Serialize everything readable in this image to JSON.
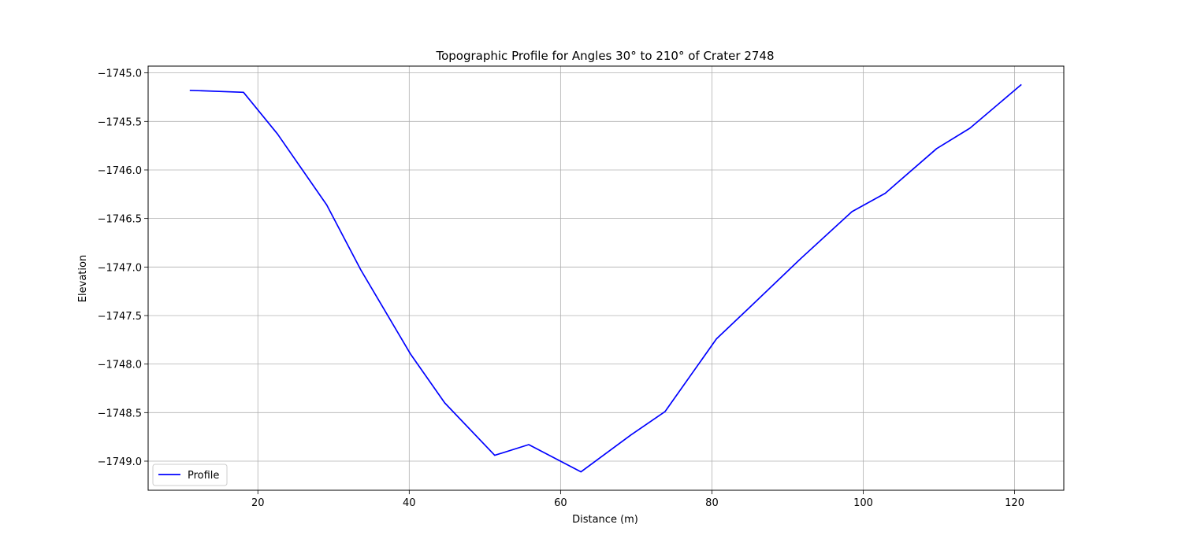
{
  "chart_data": {
    "type": "line",
    "title": "Topographic Profile for Angles 30° to 210° of Crater 2748",
    "xlabel": "Distance (m)",
    "ylabel": "Elevation",
    "xlim": [
      5.5,
      126.5
    ],
    "ylim": [
      -1749.3,
      -1744.93
    ],
    "xticks": [
      20,
      40,
      60,
      80,
      100,
      120
    ],
    "xtick_labels": [
      "20",
      "40",
      "60",
      "80",
      "100",
      "120"
    ],
    "yticks": [
      -1745.0,
      -1745.5,
      -1746.0,
      -1746.5,
      -1747.0,
      -1747.5,
      -1748.0,
      -1748.5,
      -1749.0
    ],
    "ytick_labels": [
      "−1745.0",
      "−1745.5",
      "−1746.0",
      "−1746.5",
      "−1747.0",
      "−1747.5",
      "−1748.0",
      "−1748.5",
      "−1749.0"
    ],
    "grid": true,
    "legend": "lower-left",
    "series": [
      {
        "name": "Profile",
        "color": "#0000ff",
        "x": [
          11.0,
          18.1,
          22.6,
          29.1,
          33.6,
          40.2,
          44.7,
          51.3,
          55.8,
          62.7,
          69.3,
          73.8,
          80.6,
          84.8,
          91.5,
          98.5,
          102.9,
          109.7,
          114.1,
          120.9
        ],
        "y": [
          -1745.18,
          -1745.2,
          -1745.63,
          -1746.36,
          -1747.03,
          -1747.9,
          -1748.4,
          -1748.94,
          -1748.83,
          -1749.11,
          -1748.73,
          -1748.49,
          -1747.74,
          -1747.43,
          -1746.93,
          -1746.43,
          -1746.24,
          -1745.78,
          -1745.57,
          -1745.12
        ]
      }
    ]
  }
}
